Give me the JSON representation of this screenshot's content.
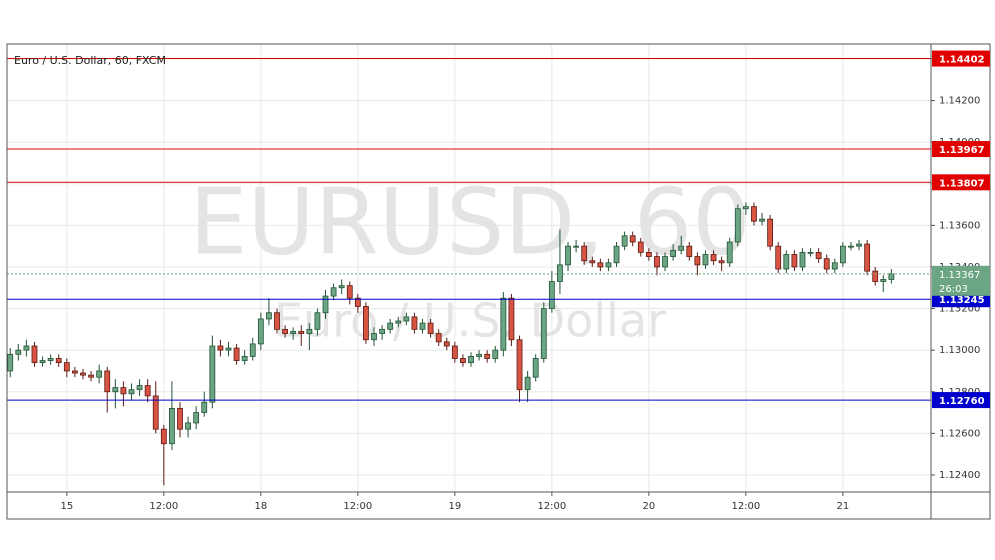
{
  "chart_data": {
    "type": "candlestick",
    "title": "Euro / U.S. Dollar, 60, FXCM",
    "watermark": "EURUSD, 60",
    "watermark_subtitle": "Euro / U.S. Dollar",
    "up_color": "#6ba583",
    "down_color": "#d75442",
    "x": [
      0,
      1,
      2,
      3,
      4,
      5,
      6,
      7,
      8,
      9,
      10,
      11,
      12,
      13,
      14,
      15,
      16,
      17,
      18,
      19,
      20,
      21,
      22,
      23,
      24,
      25,
      26,
      27,
      28,
      29,
      30,
      31,
      32,
      33,
      34,
      35,
      36,
      37,
      38,
      39,
      40,
      41,
      42,
      43,
      44,
      45,
      46,
      47,
      48,
      49,
      50,
      51,
      52,
      53,
      54,
      55,
      56,
      57,
      58,
      59,
      60,
      61,
      62,
      63,
      64,
      65,
      66,
      67,
      68,
      69,
      70,
      71,
      72,
      73,
      74,
      75,
      76,
      77,
      78,
      79,
      80,
      81,
      82,
      83,
      84,
      85,
      86,
      87,
      88,
      89,
      90,
      91,
      92,
      93,
      94,
      95,
      96,
      97,
      98,
      99,
      100,
      101,
      102,
      103,
      104,
      105,
      106,
      107,
      108,
      109
    ],
    "open": [
      1.129,
      1.1298,
      1.13,
      1.1302,
      1.1294,
      1.1295,
      1.1296,
      1.1294,
      1.129,
      1.1289,
      1.1288,
      1.1287,
      1.129,
      1.128,
      1.1282,
      1.1279,
      1.1281,
      1.1283,
      1.1278,
      1.1262,
      1.1255,
      1.1272,
      1.1262,
      1.1265,
      1.127,
      1.1275,
      1.1302,
      1.13,
      1.1301,
      1.1295,
      1.1297,
      1.1303,
      1.1315,
      1.1318,
      1.131,
      1.1308,
      1.1309,
      1.1308,
      1.131,
      1.1318,
      1.1326,
      1.133,
      1.1331,
      1.1325,
      1.1321,
      1.1305,
      1.1308,
      1.131,
      1.1313,
      1.1314,
      1.1316,
      1.131,
      1.1313,
      1.1308,
      1.1304,
      1.1302,
      1.1296,
      1.1294,
      1.1297,
      1.1298,
      1.1296,
      1.13,
      1.1325,
      1.1305,
      1.1281,
      1.1287,
      1.1296,
      1.132,
      1.1333,
      1.1341,
      1.135,
      1.135,
      1.1343,
      1.1342,
      1.134,
      1.1342,
      1.135,
      1.1355,
      1.1352,
      1.1347,
      1.1345,
      1.134,
      1.1345,
      1.1348,
      1.135,
      1.1345,
      1.1341,
      1.1346,
      1.1343,
      1.1342,
      1.1352,
      1.1368,
      1.1369,
      1.1362,
      1.1363,
      1.135,
      1.1339,
      1.1346,
      1.134,
      1.1347,
      1.1347,
      1.1344,
      1.1339,
      1.1342,
      1.135,
      1.135,
      1.1351,
      1.1338,
      1.1333,
      1.1334
    ],
    "high": [
      1.1301,
      1.1303,
      1.1305,
      1.1304,
      1.1297,
      1.1298,
      1.1298,
      1.1296,
      1.1292,
      1.1291,
      1.129,
      1.1293,
      1.1292,
      1.1286,
      1.1285,
      1.1284,
      1.1286,
      1.1286,
      1.1285,
      1.1264,
      1.1285,
      1.1275,
      1.1268,
      1.1273,
      1.128,
      1.1307,
      1.1305,
      1.1304,
      1.1303,
      1.13,
      1.1306,
      1.1318,
      1.1325,
      1.132,
      1.1312,
      1.1311,
      1.1312,
      1.1313,
      1.132,
      1.1329,
      1.1332,
      1.1334,
      1.1333,
      1.1327,
      1.1323,
      1.1311,
      1.1312,
      1.1315,
      1.1316,
      1.1318,
      1.1318,
      1.1315,
      1.1315,
      1.131,
      1.1306,
      1.1304,
      1.1298,
      1.1299,
      1.13,
      1.13,
      1.1302,
      1.1328,
      1.1327,
      1.1307,
      1.129,
      1.1298,
      1.1323,
      1.1338,
      1.1358,
      1.1352,
      1.1353,
      1.1352,
      1.1345,
      1.1344,
      1.1344,
      1.1352,
      1.1357,
      1.1357,
      1.1354,
      1.1349,
      1.1347,
      1.1347,
      1.1351,
      1.1355,
      1.1352,
      1.1347,
      1.1348,
      1.1348,
      1.1345,
      1.1354,
      1.137,
      1.1371,
      1.1371,
      1.1366,
      1.1365,
      1.1352,
      1.1348,
      1.1348,
      1.1349,
      1.1349,
      1.1349,
      1.1346,
      1.1344,
      1.1352,
      1.1352,
      1.1353,
      1.1353,
      1.134,
      1.1336,
      1.1339
    ],
    "low": [
      1.1287,
      1.1295,
      1.1297,
      1.1292,
      1.1292,
      1.1293,
      1.1292,
      1.1287,
      1.1287,
      1.1286,
      1.1285,
      1.1284,
      1.127,
      1.1272,
      1.1273,
      1.1276,
      1.1278,
      1.1275,
      1.126,
      1.1235,
      1.1252,
      1.1258,
      1.1258,
      1.1262,
      1.1268,
      1.1272,
      1.1297,
      1.1297,
      1.1293,
      1.1293,
      1.1295,
      1.13,
      1.1312,
      1.1308,
      1.1306,
      1.1305,
      1.1302,
      1.13,
      1.1307,
      1.1315,
      1.1324,
      1.1327,
      1.1322,
      1.1318,
      1.1303,
      1.1302,
      1.1305,
      1.1308,
      1.1311,
      1.1312,
      1.1308,
      1.1308,
      1.1306,
      1.1302,
      1.13,
      1.1294,
      1.1292,
      1.1292,
      1.1295,
      1.1294,
      1.1294,
      1.1297,
      1.1302,
      1.1275,
      1.1275,
      1.1285,
      1.1294,
      1.1318,
      1.1327,
      1.1338,
      1.1347,
      1.1341,
      1.134,
      1.1338,
      1.1338,
      1.134,
      1.1348,
      1.135,
      1.1345,
      1.1343,
      1.1336,
      1.1338,
      1.1343,
      1.1346,
      1.1343,
      1.1336,
      1.1339,
      1.1341,
      1.1338,
      1.134,
      1.135,
      1.1365,
      1.136,
      1.136,
      1.1348,
      1.1337,
      1.1337,
      1.1338,
      1.1338,
      1.1345,
      1.1342,
      1.1337,
      1.1337,
      1.134,
      1.1348,
      1.1348,
      1.1336,
      1.1331,
      1.1328,
      1.1332
    ],
    "close": [
      1.1298,
      1.13,
      1.1302,
      1.1294,
      1.1295,
      1.1296,
      1.1294,
      1.129,
      1.1289,
      1.1288,
      1.1287,
      1.129,
      1.128,
      1.1282,
      1.1279,
      1.1281,
      1.1283,
      1.1278,
      1.1262,
      1.1255,
      1.1272,
      1.1262,
      1.1265,
      1.127,
      1.1275,
      1.1302,
      1.13,
      1.1301,
      1.1295,
      1.1297,
      1.1303,
      1.1315,
      1.1318,
      1.131,
      1.1308,
      1.1309,
      1.1308,
      1.131,
      1.1318,
      1.1326,
      1.133,
      1.1331,
      1.1325,
      1.1321,
      1.1305,
      1.1308,
      1.131,
      1.1313,
      1.1314,
      1.1316,
      1.131,
      1.1313,
      1.1308,
      1.1304,
      1.1302,
      1.1296,
      1.1294,
      1.1297,
      1.1298,
      1.1296,
      1.13,
      1.1325,
      1.1305,
      1.1281,
      1.1287,
      1.1296,
      1.132,
      1.1333,
      1.1341,
      1.135,
      1.135,
      1.1343,
      1.1342,
      1.134,
      1.1342,
      1.135,
      1.1355,
      1.1352,
      1.1347,
      1.1345,
      1.134,
      1.1345,
      1.1348,
      1.135,
      1.1345,
      1.1341,
      1.1346,
      1.1343,
      1.1342,
      1.1352,
      1.1368,
      1.1369,
      1.1362,
      1.1363,
      1.135,
      1.1339,
      1.1346,
      1.134,
      1.1347,
      1.1347,
      1.1344,
      1.1339,
      1.1342,
      1.135,
      1.135,
      1.1351,
      1.1338,
      1.1333,
      1.1334,
      1.13367
    ],
    "xlim": [
      -0.4,
      113.9
    ],
    "xticks": [
      {
        "value": 7,
        "label": "15"
      },
      {
        "value": 19,
        "label": "12:00"
      },
      {
        "value": 31,
        "label": "18"
      },
      {
        "value": 43,
        "label": "12:00"
      },
      {
        "value": 55,
        "label": "19"
      },
      {
        "value": 67,
        "label": "12:00"
      },
      {
        "value": 79,
        "label": "20"
      },
      {
        "value": 91,
        "label": "12:00"
      },
      {
        "value": 103,
        "label": "21"
      }
    ],
    "ylim": [
      1.12318,
      1.14472
    ],
    "yticks": [
      {
        "value": 1.124,
        "label": "1.12400"
      },
      {
        "value": 1.126,
        "label": "1.12600"
      },
      {
        "value": 1.128,
        "label": "1.12800"
      },
      {
        "value": 1.13,
        "label": "1.13000"
      },
      {
        "value": 1.132,
        "label": "1.13200"
      },
      {
        "value": 1.134,
        "label": "1.13400"
      },
      {
        "value": 1.136,
        "label": "1.13600"
      },
      {
        "value": 1.138,
        "label": "1.13800"
      },
      {
        "value": 1.14,
        "label": "1.14000"
      },
      {
        "value": 1.142,
        "label": "1.14200"
      },
      {
        "value": 1.144,
        "label": "1.14400"
      }
    ],
    "grid": true,
    "levels": [
      {
        "value": 1.14402,
        "color": "#e00000"
      },
      {
        "value": 1.13967,
        "color": "#e00000"
      },
      {
        "value": 1.13807,
        "color": "#e00000"
      },
      {
        "value": 1.13245,
        "color": "#0000cc"
      },
      {
        "value": 1.1276,
        "label": "1.12760",
        "color": "#0000cc"
      }
    ],
    "countdown": "26:03"
  }
}
